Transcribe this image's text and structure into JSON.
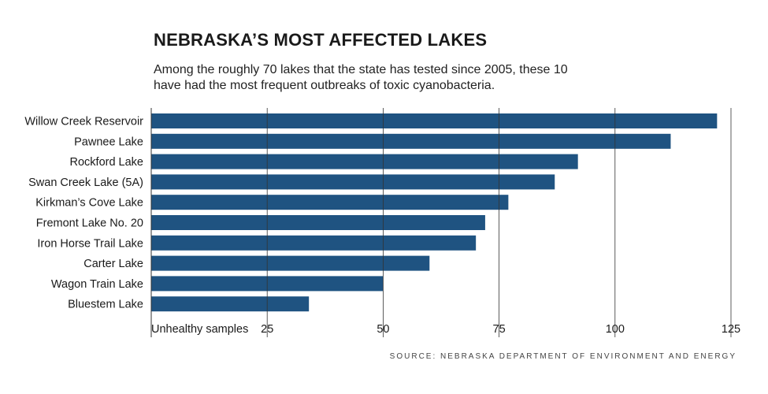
{
  "title": "NEBRASKA’S MOST AFFECTED LAKES",
  "subtitle": "Among the roughly 70 lakes that the state has tested since 2005, these 10 have had the most frequent outbreaks of toxic cyanobacteria.",
  "source": "SOURCE: NEBRASKA DEPARTMENT OF ENVIRONMENT AND ENERGY",
  "colors": {
    "bar": "#1f5381",
    "grid": "#333333",
    "text": "#1a1a1a"
  },
  "chart_data": {
    "type": "bar",
    "orientation": "horizontal",
    "categories": [
      "Willow Creek Reservoir",
      "Pawnee Lake",
      "Rockford Lake",
      "Swan Creek Lake (5A)",
      "Kirkman’s Cove Lake",
      "Fremont Lake No. 20",
      "Iron Horse Trail Lake",
      "Carter Lake",
      "Wagon Train Lake",
      "Bluestem Lake"
    ],
    "values": [
      122,
      112,
      92,
      87,
      77,
      72,
      70,
      60,
      50,
      34
    ],
    "xlabel": "Unhealthy samples",
    "xlim": [
      0,
      125
    ],
    "ticks": [
      25,
      50,
      75,
      100,
      125
    ],
    "grid": true
  }
}
